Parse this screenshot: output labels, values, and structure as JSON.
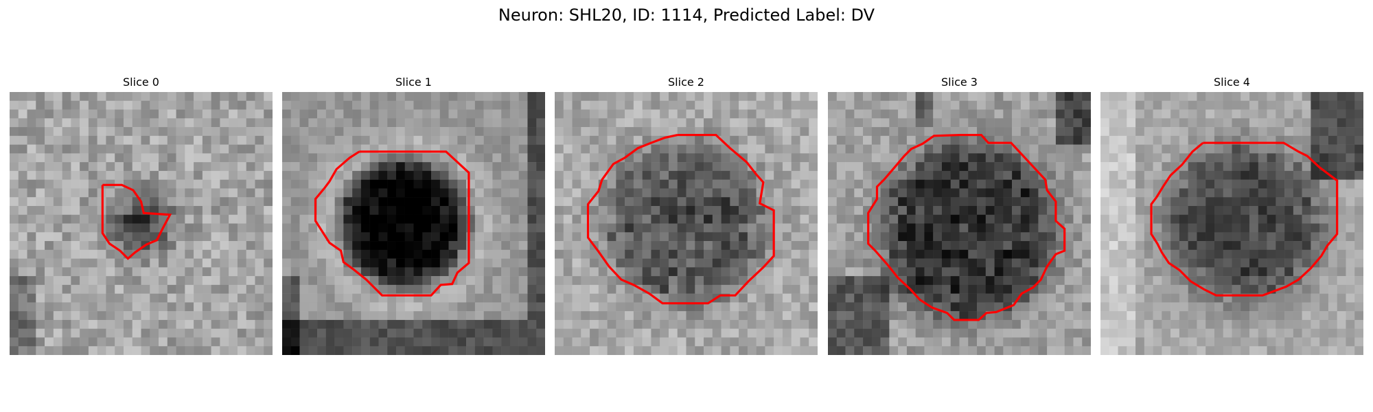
{
  "figure": {
    "title": "Neuron: SHL20, ID: 1114, Predicted Label: DV"
  },
  "contour_color": "#ff0000",
  "panels": [
    {
      "title": "Slice 0"
    },
    {
      "title": "Slice 1"
    },
    {
      "title": "Slice 2"
    },
    {
      "title": "Slice 3"
    },
    {
      "title": "Slice 4"
    }
  ]
}
